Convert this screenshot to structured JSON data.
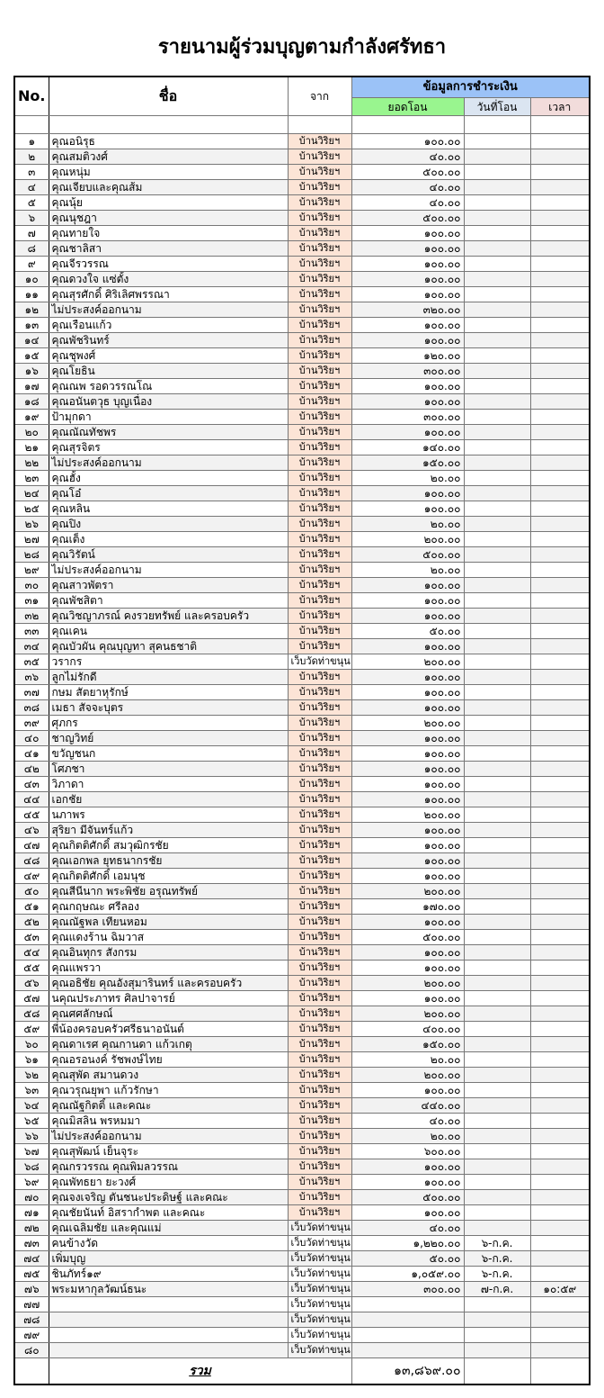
{
  "title": "รายนามผู้ร่วมบุญตามกำลังศรัทธา",
  "headers": {
    "no": "No.",
    "name": "ชื่อ",
    "from": "จาก",
    "payment": "ข้อมูลการชำระเงิน",
    "amount": "ยอดโอน",
    "date": "วันที่โอน",
    "time": "เวลา"
  },
  "colors": {
    "payment_header": "#9bc2f7",
    "amount_header": "#99f58f",
    "date_header": "#dbe5f1",
    "time_header": "#f2dcdb",
    "from_home_cell": "#fce4d6"
  },
  "rows": [
    {
      "no": "๑",
      "name": "คุณอนิรุธ",
      "from": "บ้านวิริยฯ",
      "amount": "๑๐๐.๐๐"
    },
    {
      "no": "๒",
      "name": "คุณสมติวงศ์",
      "from": "บ้านวิริยฯ",
      "amount": "๔๐.๐๐"
    },
    {
      "no": "๓",
      "name": "คุณหนุ่ม",
      "from": "บ้านวิริยฯ",
      "amount": "๕๐๐.๐๐"
    },
    {
      "no": "๔",
      "name": "คุณเจียบและคุณส้ม",
      "from": "บ้านวิริยฯ",
      "amount": "๔๐.๐๐"
    },
    {
      "no": "๕",
      "name": "คุณนุ้ย",
      "from": "บ้านวิริยฯ",
      "amount": "๔๐.๐๐"
    },
    {
      "no": "๖",
      "name": "คุณนุชฎา",
      "from": "บ้านวิริยฯ",
      "amount": "๕๐๐.๐๐"
    },
    {
      "no": "๗",
      "name": "คุณทายใจ",
      "from": "บ้านวิริยฯ",
      "amount": "๑๐๐.๐๐"
    },
    {
      "no": "๘",
      "name": "คุณชาลิสา",
      "from": "บ้านวิริยฯ",
      "amount": "๑๐๐.๐๐"
    },
    {
      "no": "๙",
      "name": "คุณจีรวรรณ",
      "from": "บ้านวิริยฯ",
      "amount": "๑๐๐.๐๐"
    },
    {
      "no": "๑๐",
      "name": "คุณดวงใจ แซ่ตั้ง",
      "from": "บ้านวิริยฯ",
      "amount": "๑๐๐.๐๐"
    },
    {
      "no": "๑๑",
      "name": "คุณสุรศักดิ์ ศิริเลิศพรรณา",
      "from": "บ้านวิริยฯ",
      "amount": "๑๐๐.๐๐"
    },
    {
      "no": "๑๒",
      "name": "ไม่ประสงค์ออกนาม",
      "from": "บ้านวิริยฯ",
      "amount": "๓๒๐.๐๐"
    },
    {
      "no": "๑๓",
      "name": "คุณเรือนแก้ว",
      "from": "บ้านวิริยฯ",
      "amount": "๑๐๐.๐๐"
    },
    {
      "no": "๑๔",
      "name": "คุณพัชรินทร์",
      "from": "บ้านวิริยฯ",
      "amount": "๑๐๐.๐๐"
    },
    {
      "no": "๑๕",
      "name": "คุณชุพงศ์",
      "from": "บ้านวิริยฯ",
      "amount": "๑๒๐.๐๐"
    },
    {
      "no": "๑๖",
      "name": "คุณโยธิน",
      "from": "บ้านวิริยฯ",
      "amount": "๓๐๐.๐๐"
    },
    {
      "no": "๑๗",
      "name": "คุณณพ รอดวรรณโณ",
      "from": "บ้านวิริยฯ",
      "amount": "๑๐๐.๐๐"
    },
    {
      "no": "๑๘",
      "name": "คุณอนันตวุธ บุญเนื่อง",
      "from": "บ้านวิริยฯ",
      "amount": "๑๐๐.๐๐"
    },
    {
      "no": "๑๙",
      "name": "ป้ามุกดา",
      "from": "บ้านวิริยฯ",
      "amount": "๓๐๐.๐๐"
    },
    {
      "no": "๒๐",
      "name": "คุณณัณทัชพร",
      "from": "บ้านวิริยฯ",
      "amount": "๑๐๐.๐๐"
    },
    {
      "no": "๒๑",
      "name": "คุณสุรจิตร",
      "from": "บ้านวิริยฯ",
      "amount": "๑๔๐.๐๐"
    },
    {
      "no": "๒๒",
      "name": "ไม่ประสงค์ออกนาม",
      "from": "บ้านวิริยฯ",
      "amount": "๑๕๐.๐๐"
    },
    {
      "no": "๒๓",
      "name": "คุณฮั้ง",
      "from": "บ้านวิริยฯ",
      "amount": "๒๐.๐๐"
    },
    {
      "no": "๒๔",
      "name": "คุณโอ๋",
      "from": "บ้านวิริยฯ",
      "amount": "๑๐๐.๐๐"
    },
    {
      "no": "๒๕",
      "name": "คุณหลิน",
      "from": "บ้านวิริยฯ",
      "amount": "๑๐๐.๐๐"
    },
    {
      "no": "๒๖",
      "name": "คุณปิง",
      "from": "บ้านวิริยฯ",
      "amount": "๒๐.๐๐"
    },
    {
      "no": "๒๗",
      "name": "คุณเต็ง",
      "from": "บ้านวิริยฯ",
      "amount": "๒๐๐.๐๐"
    },
    {
      "no": "๒๘",
      "name": "คุณวิรัตน์",
      "from": "บ้านวิริยฯ",
      "amount": "๕๐๐.๐๐"
    },
    {
      "no": "๒๙",
      "name": "ไม่ประสงค์ออกนาม",
      "from": "บ้านวิริยฯ",
      "amount": "๒๐.๐๐"
    },
    {
      "no": "๓๐",
      "name": "คุณสาวพัตรา",
      "from": "บ้านวิริยฯ",
      "amount": "๑๐๐.๐๐"
    },
    {
      "no": "๓๑",
      "name": "คุณพัชสิตา",
      "from": "บ้านวิริยฯ",
      "amount": "๑๐๐.๐๐"
    },
    {
      "no": "๓๒",
      "name": "คุณวิชญาภรณ์ คงรวยทรัพย์ และครอบครัว",
      "from": "บ้านวิริยฯ",
      "amount": "๑๐๐.๐๐"
    },
    {
      "no": "๓๓",
      "name": "คุณเคน",
      "from": "บ้านวิริยฯ",
      "amount": "๕๐.๐๐"
    },
    {
      "no": "๓๔",
      "name": "คุณบัวผัน คุณบุญทา สุคนธชาติ",
      "from": "บ้านวิริยฯ",
      "amount": "๑๐๐.๐๐"
    },
    {
      "no": "๓๕",
      "name": "วรากร",
      "from": "เว็บวัดท่าขนุน",
      "amount": "๒๐๐.๐๐"
    },
    {
      "no": "๓๖",
      "name": "ลูกไม่รักดี",
      "from": "บ้านวิริยฯ",
      "amount": "๑๐๐.๐๐"
    },
    {
      "no": "๓๗",
      "name": "กษม สัตยาหุรักษ์",
      "from": "บ้านวิริยฯ",
      "amount": "๑๐๐.๐๐"
    },
    {
      "no": "๓๘",
      "name": "เมธา สัจจะบุตร",
      "from": "บ้านวิริยฯ",
      "amount": "๑๐๐.๐๐"
    },
    {
      "no": "๓๙",
      "name": "ศุภกร",
      "from": "บ้านวิริยฯ",
      "amount": "๒๐๐.๐๐"
    },
    {
      "no": "๔๐",
      "name": "ชาญวิทย์",
      "from": "บ้านวิริยฯ",
      "amount": "๑๐๐.๐๐"
    },
    {
      "no": "๔๑",
      "name": "ขวัญชนก",
      "from": "บ้านวิริยฯ",
      "amount": "๑๐๐.๐๐"
    },
    {
      "no": "๔๒",
      "name": "โศภชา",
      "from": "บ้านวิริยฯ",
      "amount": "๑๐๐.๐๐"
    },
    {
      "no": "๔๓",
      "name": "วิภาดา",
      "from": "บ้านวิริยฯ",
      "amount": "๑๐๐.๐๐"
    },
    {
      "no": "๔๔",
      "name": "เอกชัย",
      "from": "บ้านวิริยฯ",
      "amount": "๑๐๐.๐๐"
    },
    {
      "no": "๔๕",
      "name": "นภาพร",
      "from": "บ้านวิริยฯ",
      "amount": "๒๐๐.๐๐"
    },
    {
      "no": "๔๖",
      "name": "สุริยา มีจันทร์แก้ว",
      "from": "บ้านวิริยฯ",
      "amount": "๑๐๐.๐๐"
    },
    {
      "no": "๔๗",
      "name": "คุณกิตติศักดิ์ สมวุฒิกรชัย",
      "from": "บ้านวิริยฯ",
      "amount": "๑๐๐.๐๐"
    },
    {
      "no": "๔๘",
      "name": "คุณเอกพล ยุทธนากรชัย",
      "from": "บ้านวิริยฯ",
      "amount": "๑๐๐.๐๐"
    },
    {
      "no": "๔๙",
      "name": "คุณกิตติศักดิ์ เอมนุช",
      "from": "บ้านวิริยฯ",
      "amount": "๑๐๐.๐๐"
    },
    {
      "no": "๕๐",
      "name": "คุณสีนีนาก พระพิชัย อรุณทรัพย์",
      "from": "บ้านวิริยฯ",
      "amount": "๒๐๐.๐๐"
    },
    {
      "no": "๕๑",
      "name": "คุณกฤษณะ ศรีลอง",
      "from": "บ้านวิริยฯ",
      "amount": "๑๗๐.๐๐"
    },
    {
      "no": "๕๒",
      "name": "คุณณัฐพล เทียนหอม",
      "from": "บ้านวิริยฯ",
      "amount": "๑๐๐.๐๐"
    },
    {
      "no": "๕๓",
      "name": "คุณแดงร้าน ฉิมวาส",
      "from": "บ้านวิริยฯ",
      "amount": "๕๐๐.๐๐"
    },
    {
      "no": "๕๔",
      "name": "คุณอินทุกร สังกรม",
      "from": "บ้านวิริยฯ",
      "amount": "๑๐๐.๐๐"
    },
    {
      "no": "๕๕",
      "name": "คุณแพรวา",
      "from": "บ้านวิริยฯ",
      "amount": "๑๐๐.๐๐"
    },
    {
      "no": "๕๖",
      "name": "คุณอธิชัย คุณอังสุมารินทร์ และครอบครัว",
      "from": "บ้านวิริยฯ",
      "amount": "๒๐๐.๐๐"
    },
    {
      "no": "๕๗",
      "name": "นคุณประภาทร ศิลปาจารย์",
      "from": "บ้านวิริยฯ",
      "amount": "๑๐๐.๐๐"
    },
    {
      "no": "๕๘",
      "name": "คุณศศลักษณ์",
      "from": "บ้านวิริยฯ",
      "amount": "๒๐๐.๐๐"
    },
    {
      "no": "๕๙",
      "name": "พี่น้องครอบครัวศรีธนาอนันต์",
      "from": "บ้านวิริยฯ",
      "amount": "๔๐๐.๐๐"
    },
    {
      "no": "๖๐",
      "name": "คุณดาเรศ คุณกานดา แก้วเกตุ",
      "from": "บ้านวิริยฯ",
      "amount": "๑๕๐.๐๐"
    },
    {
      "no": "๖๑",
      "name": "คุณอรอนงค์ รัชพงษ์ไทย",
      "from": "บ้านวิริยฯ",
      "amount": "๒๐.๐๐"
    },
    {
      "no": "๖๒",
      "name": "คุณสุพัด สมานดวง",
      "from": "บ้านวิริยฯ",
      "amount": "๒๐๐.๐๐"
    },
    {
      "no": "๖๓",
      "name": "คุณวรุณยุพา แก้วรักษา",
      "from": "บ้านวิริยฯ",
      "amount": "๑๐๐.๐๐"
    },
    {
      "no": "๖๔",
      "name": "คุณณัฐกิตติ์ และคณะ",
      "from": "บ้านวิริยฯ",
      "amount": "๔๔๐.๐๐"
    },
    {
      "no": "๖๕",
      "name": "คุณมิสลิน พรหมมา",
      "from": "บ้านวิริยฯ",
      "amount": "๔๐.๐๐"
    },
    {
      "no": "๖๖",
      "name": "ไม่ประสงค์ออกนาม",
      "from": "บ้านวิริยฯ",
      "amount": "๒๐.๐๐"
    },
    {
      "no": "๖๗",
      "name": "คุณสุพัฒน์ เย็นจุระ",
      "from": "บ้านวิริยฯ",
      "amount": "๖๐๐.๐๐"
    },
    {
      "no": "๖๘",
      "name": "คุณกรวรรณ คุณพิมลวรรณ",
      "from": "บ้านวิริยฯ",
      "amount": "๑๐๐.๐๐"
    },
    {
      "no": "๖๙",
      "name": "คุณพัทธยา ยะวงศ์",
      "from": "บ้านวิริยฯ",
      "amount": "๑๐๐.๐๐"
    },
    {
      "no": "๗๐",
      "name": "คุณจงเจริญ ตันชนะประดิษฐ์ และคณะ",
      "from": "บ้านวิริยฯ",
      "amount": "๕๐๐.๐๐"
    },
    {
      "no": "๗๑",
      "name": "คุณชัยนันท์ อิสรากำพต และคณะ",
      "from": "บ้านวิริยฯ",
      "amount": "๑๐๐.๐๐"
    },
    {
      "no": "๗๒",
      "name": "คุณเฉลิมชัย และคุณแม่",
      "from": "เว็บวัดท่าขนุน",
      "amount": "๔๐.๐๐"
    },
    {
      "no": "๗๓",
      "name": "คนข้างวัด",
      "from": "เว็บวัดท่าขนุน",
      "amount": "๑,๒๒๐.๐๐",
      "date": "๖-ก.ค."
    },
    {
      "no": "๗๔",
      "name": "เพิ่มบุญ",
      "from": "เว็บวัดท่าขนุน",
      "amount": "๕๐.๐๐",
      "date": "๖-ก.ค."
    },
    {
      "no": "๗๕",
      "name": "ชินภัทร์๑๙",
      "from": "เว็บวัดท่าขนุน",
      "amount": "๑,๐๕๙.๐๐",
      "date": "๖-ก.ค."
    },
    {
      "no": "๗๖",
      "name": "พระมหากุลวัฒน์ธนะ",
      "from": "เว็บวัดท่าขนุน",
      "amount": "๓๐๐.๐๐",
      "date": "๗-ก.ค.",
      "time": "๑๐:๕๙"
    },
    {
      "no": "๗๗",
      "name": "",
      "from": "เว็บวัดท่าขนุน",
      "amount": ""
    },
    {
      "no": "๗๘",
      "name": "",
      "from": "เว็บวัดท่าขนุน",
      "amount": ""
    },
    {
      "no": "๗๙",
      "name": "",
      "from": "เว็บวัดท่าขนุน",
      "amount": ""
    },
    {
      "no": "๘๐",
      "name": "",
      "from": "เว็บวัดท่าขนุน",
      "amount": ""
    }
  ],
  "total": {
    "label": "รวม",
    "amount": "๑๓,๘๖๙.๐๐"
  }
}
